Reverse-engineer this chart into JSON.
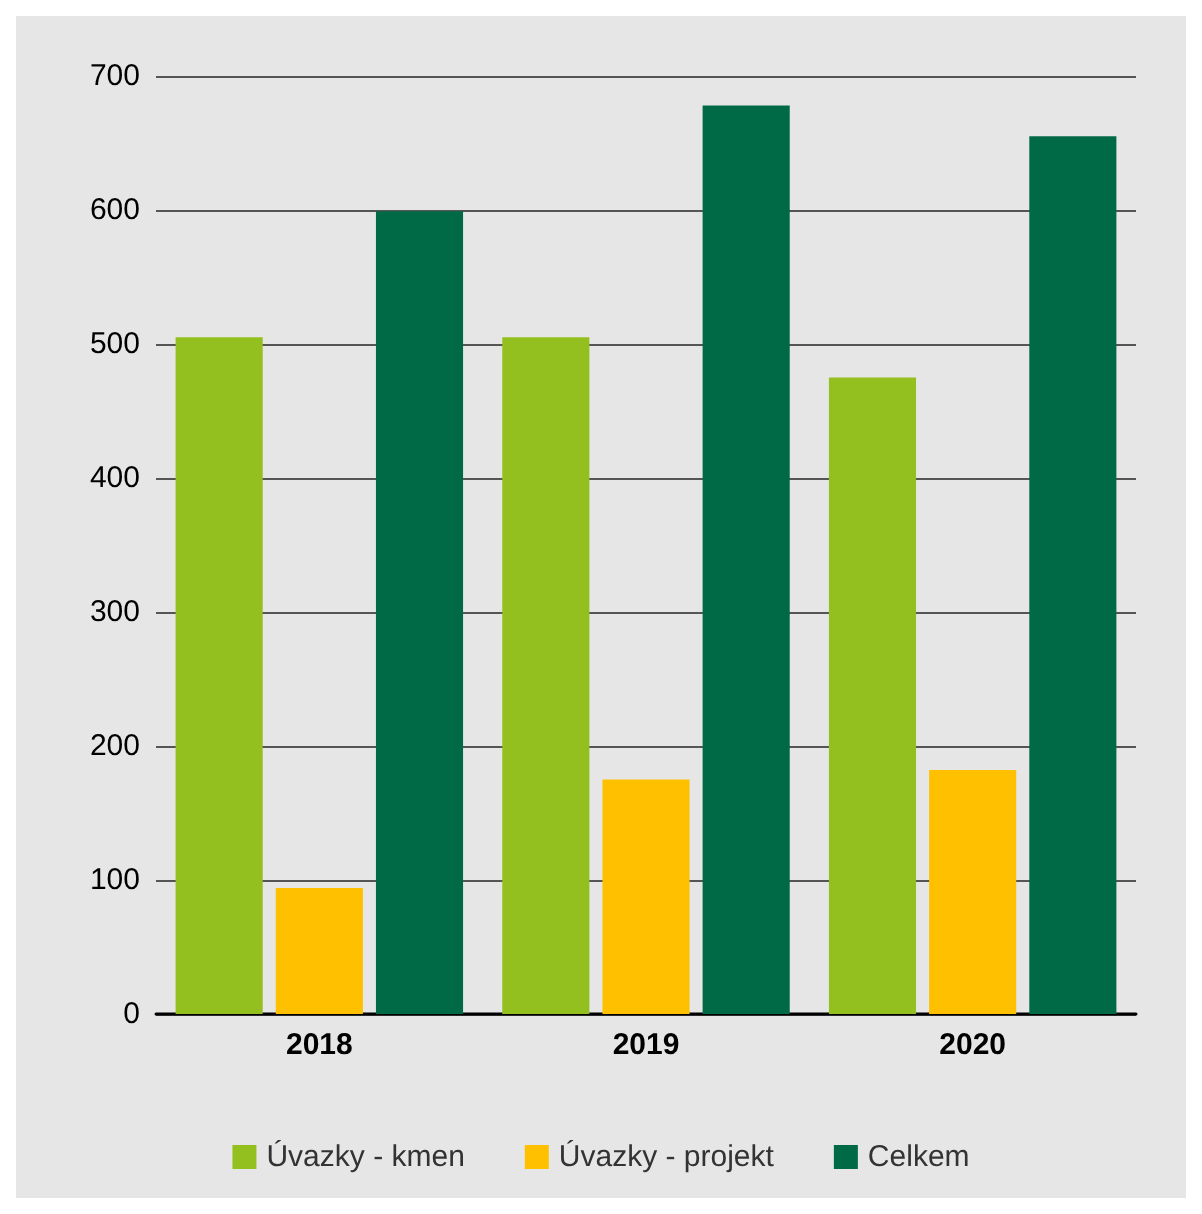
{
  "chart_data": {
    "type": "bar",
    "categories": [
      "2018",
      "2019",
      "2020"
    ],
    "series": [
      {
        "name": "Úvazky - kmen",
        "color": "#93c01f",
        "values": [
          505,
          505,
          475
        ]
      },
      {
        "name": "Úvazky - projekt",
        "color": "#ffc000",
        "values": [
          94,
          175,
          182
        ]
      },
      {
        "name": "Celkem",
        "color": "#006a46",
        "values": [
          599,
          678,
          655
        ]
      }
    ],
    "ylim": [
      0,
      700
    ],
    "yticks": [
      0,
      100,
      200,
      300,
      400,
      500,
      600,
      700
    ],
    "grid": "y",
    "legend": "bottom"
  }
}
